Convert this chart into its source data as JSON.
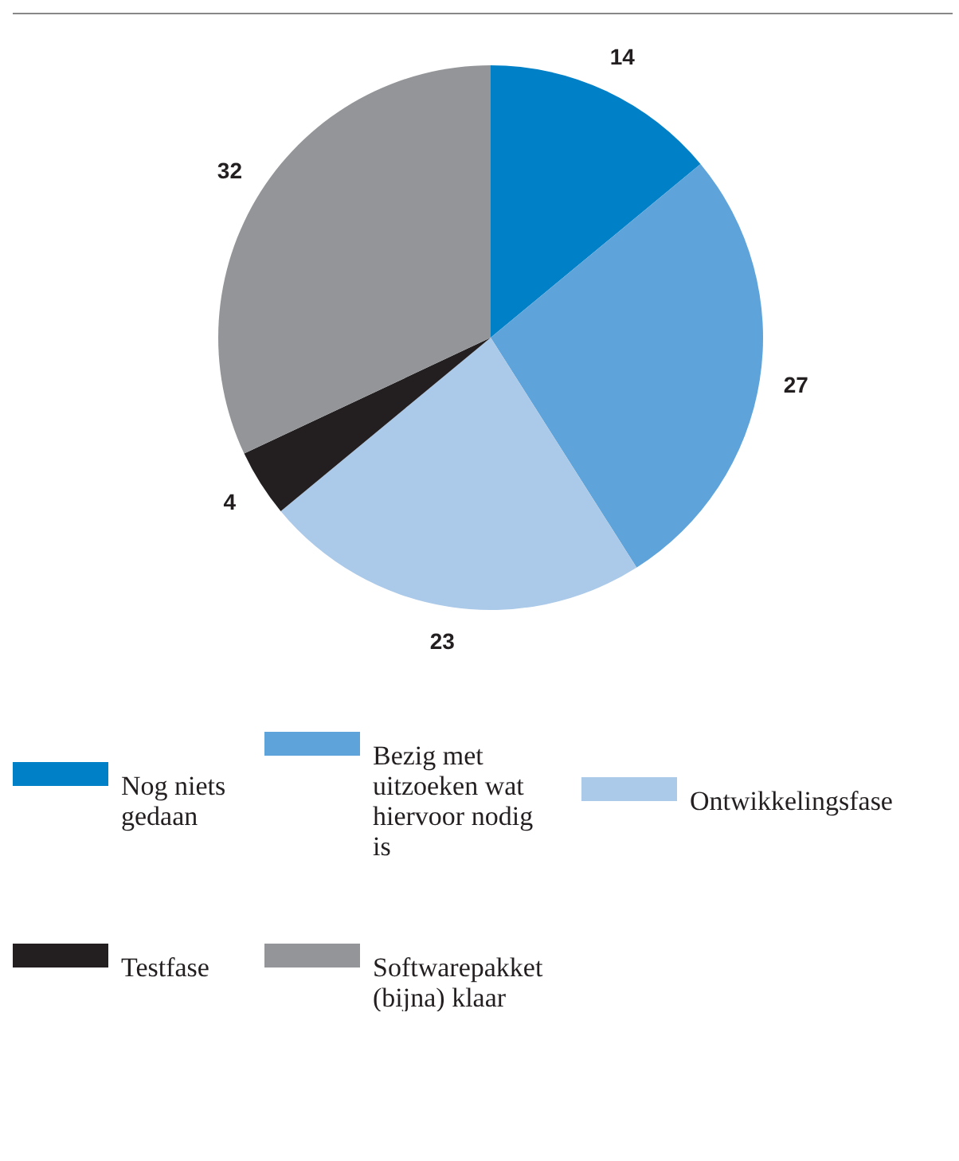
{
  "chart_data": {
    "type": "pie",
    "categories": [
      "Nog niets gedaan",
      "Bezig met uitzoeken wat hiervoor nodig is",
      "Ontwikkelingsfase",
      "Testfase",
      "Softwarepakket (bijna) klaar"
    ],
    "values": [
      14,
      27,
      23,
      4,
      32
    ],
    "colors": [
      "#0080c6",
      "#5ea3d9",
      "#abc9e8",
      "#231f20",
      "#939598"
    ],
    "data_labels": true,
    "legend": "bottom"
  }
}
